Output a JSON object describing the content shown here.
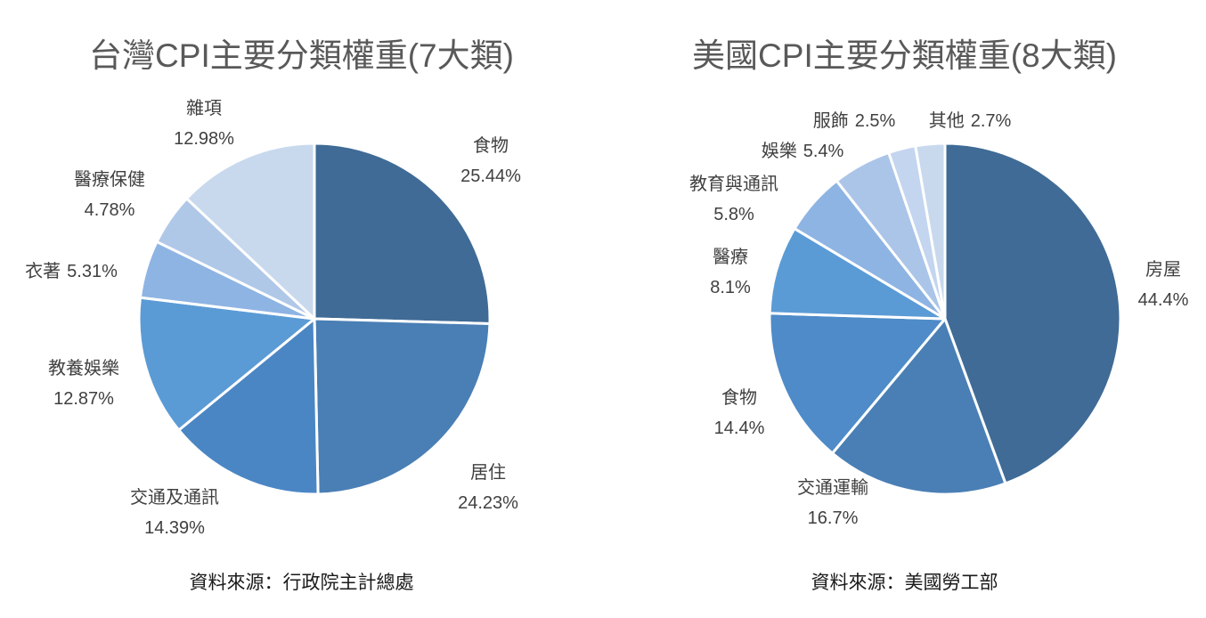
{
  "chart_data": [
    {
      "type": "pie",
      "title": "台灣CPI主要分類權重(7大類)",
      "source": "資料來源：行政院主計總處",
      "categories": [
        "食物",
        "居住",
        "交通及通訊",
        "教養娛樂",
        "衣著",
        "醫療保健",
        "雜項"
      ],
      "values": [
        25.44,
        24.23,
        14.39,
        12.87,
        5.31,
        4.78,
        12.98
      ],
      "value_labels": [
        "25.44%",
        "24.23%",
        "14.39%",
        "12.87%",
        "5.31%",
        "4.78%",
        "12.98%"
      ],
      "colors": [
        "#3f6b96",
        "#4a7fb5",
        "#4b86c4",
        "#5b9bd5",
        "#8eb4e3",
        "#b0c8e8",
        "#c8d9ee"
      ],
      "start_angle": "12 o'clock",
      "direction": "clockwise",
      "legend": "none"
    },
    {
      "type": "pie",
      "title": "美國CPI主要分類權重(8大類)",
      "source": "資料來源：美國勞工部",
      "categories": [
        "房屋",
        "交通運輸",
        "食物",
        "醫療",
        "教育與通訊",
        "娛樂",
        "服飾",
        "其他"
      ],
      "values": [
        44.4,
        16.7,
        14.4,
        8.1,
        5.8,
        5.4,
        2.5,
        2.7
      ],
      "value_labels": [
        "44.4%",
        "16.7%",
        "14.4%",
        "8.1%",
        "5.8%",
        "5.4%",
        "2.5%",
        "2.7%"
      ],
      "colors": [
        "#3f6b96",
        "#4a7fb5",
        "#4e8bc8",
        "#5b9bd5",
        "#8eb4e3",
        "#abc5e8",
        "#c3d5ef",
        "#c8d9ee"
      ],
      "start_angle": "12 o'clock",
      "direction": "clockwise",
      "legend": "none"
    }
  ]
}
